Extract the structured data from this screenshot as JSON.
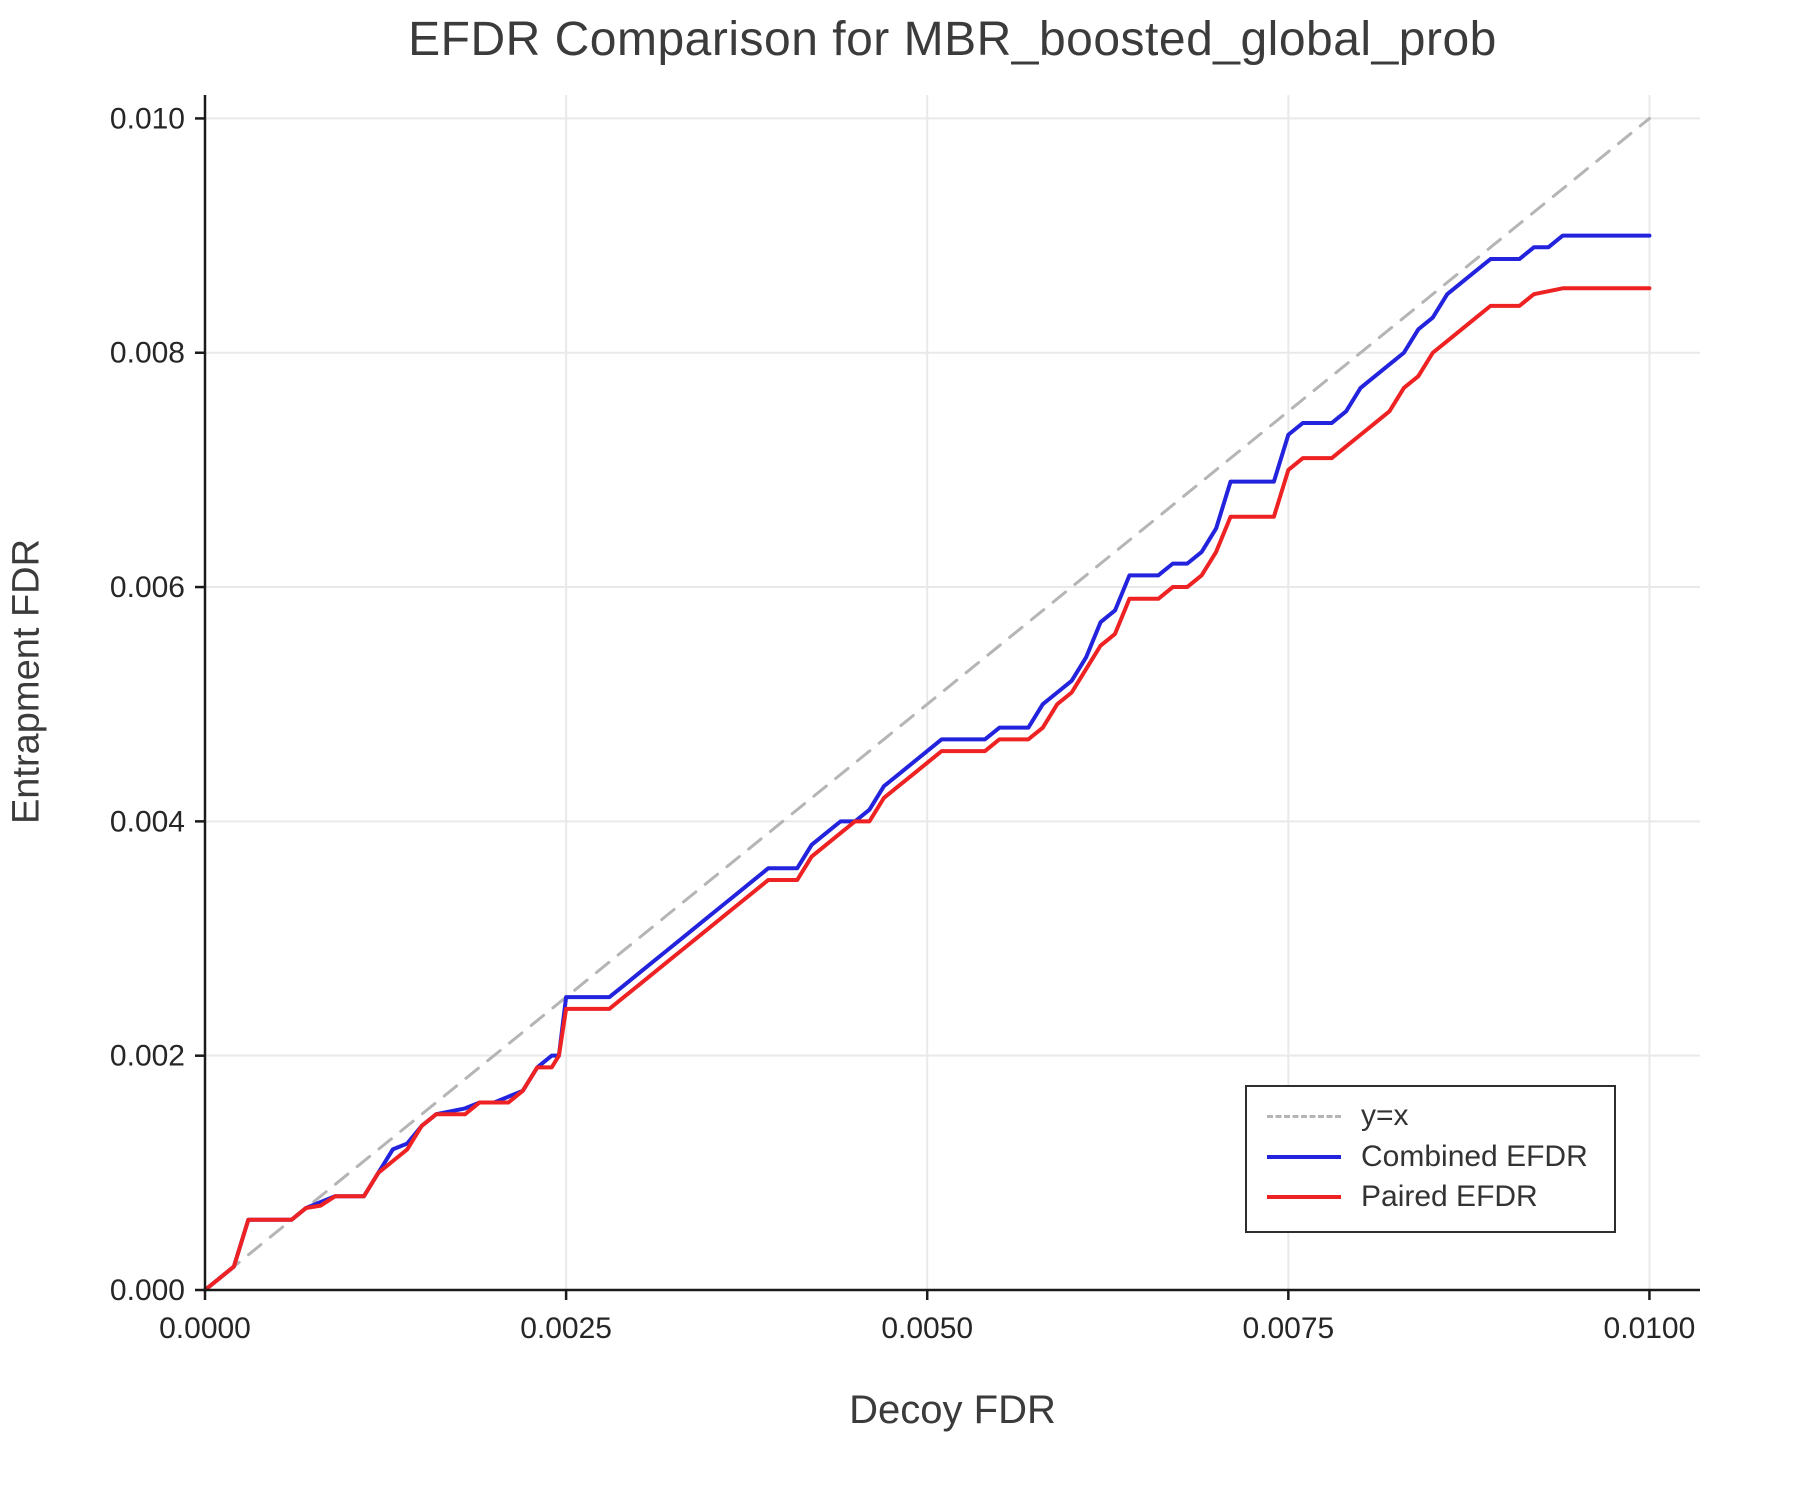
{
  "title": "EFDR Comparison for MBR_boosted_global_prob",
  "chart_data": {
    "type": "line",
    "title": "EFDR Comparison for MBR_boosted_global_prob",
    "xlabel": "Decoy FDR",
    "ylabel": "Entrapment FDR",
    "xlim": [
      0,
      0.01035
    ],
    "ylim": [
      0,
      0.0102
    ],
    "grid": true,
    "legend_position": "lower right",
    "x_ticks": [
      0,
      0.0025,
      0.005,
      0.0075,
      0.01
    ],
    "x_tick_labels": [
      "0.0000",
      "0.0025",
      "0.0050",
      "0.0075",
      "0.0100"
    ],
    "y_ticks": [
      0,
      0.002,
      0.004,
      0.006,
      0.008,
      0.01
    ],
    "y_tick_labels": [
      "0.000",
      "0.002",
      "0.004",
      "0.006",
      "0.008",
      "0.010"
    ],
    "series": [
      {
        "name": "y=x",
        "style": "dashed",
        "color": "#b5b5b5",
        "width": 3,
        "points": [
          [
            0,
            0
          ],
          [
            0.01,
            0.01
          ]
        ]
      },
      {
        "name": "Combined EFDR",
        "style": "solid",
        "color": "#2323dd",
        "width": 4,
        "points": [
          [
            0.0,
            0.0
          ],
          [
            0.0001,
            0.0001
          ],
          [
            0.0002,
            0.0002
          ],
          [
            0.0003,
            0.0006
          ],
          [
            0.0006,
            0.0006
          ],
          [
            0.0007,
            0.0007
          ],
          [
            0.0008,
            0.00075
          ],
          [
            0.0009,
            0.0008
          ],
          [
            0.0011,
            0.0008
          ],
          [
            0.0012,
            0.001
          ],
          [
            0.0013,
            0.0012
          ],
          [
            0.0014,
            0.00125
          ],
          [
            0.0015,
            0.0014
          ],
          [
            0.0016,
            0.0015
          ],
          [
            0.0018,
            0.00155
          ],
          [
            0.0019,
            0.0016
          ],
          [
            0.002,
            0.0016
          ],
          [
            0.0021,
            0.00165
          ],
          [
            0.0022,
            0.0017
          ],
          [
            0.0023,
            0.0019
          ],
          [
            0.0024,
            0.002
          ],
          [
            0.00245,
            0.002
          ],
          [
            0.0025,
            0.0025
          ],
          [
            0.0028,
            0.0025
          ],
          [
            0.0029,
            0.0026
          ],
          [
            0.003,
            0.0027
          ],
          [
            0.0031,
            0.0028
          ],
          [
            0.0032,
            0.0029
          ],
          [
            0.0033,
            0.003
          ],
          [
            0.0034,
            0.0031
          ],
          [
            0.0035,
            0.0032
          ],
          [
            0.0036,
            0.0033
          ],
          [
            0.0037,
            0.0034
          ],
          [
            0.0038,
            0.0035
          ],
          [
            0.0039,
            0.0036
          ],
          [
            0.0041,
            0.0036
          ],
          [
            0.0042,
            0.0038
          ],
          [
            0.0043,
            0.0039
          ],
          [
            0.0044,
            0.004
          ],
          [
            0.0045,
            0.004
          ],
          [
            0.0046,
            0.0041
          ],
          [
            0.0047,
            0.0043
          ],
          [
            0.0048,
            0.0044
          ],
          [
            0.0049,
            0.0045
          ],
          [
            0.005,
            0.0046
          ],
          [
            0.0051,
            0.0047
          ],
          [
            0.0054,
            0.0047
          ],
          [
            0.0055,
            0.0048
          ],
          [
            0.0057,
            0.0048
          ],
          [
            0.0058,
            0.005
          ],
          [
            0.0059,
            0.0051
          ],
          [
            0.006,
            0.0052
          ],
          [
            0.0061,
            0.0054
          ],
          [
            0.0062,
            0.0057
          ],
          [
            0.0063,
            0.0058
          ],
          [
            0.0064,
            0.0061
          ],
          [
            0.0066,
            0.0061
          ],
          [
            0.0067,
            0.0062
          ],
          [
            0.0068,
            0.0062
          ],
          [
            0.0069,
            0.0063
          ],
          [
            0.007,
            0.0065
          ],
          [
            0.0071,
            0.0069
          ],
          [
            0.0074,
            0.0069
          ],
          [
            0.0075,
            0.0073
          ],
          [
            0.0076,
            0.0074
          ],
          [
            0.0078,
            0.0074
          ],
          [
            0.0079,
            0.0075
          ],
          [
            0.008,
            0.0077
          ],
          [
            0.0081,
            0.0078
          ],
          [
            0.0082,
            0.0079
          ],
          [
            0.0083,
            0.008
          ],
          [
            0.0084,
            0.0082
          ],
          [
            0.0085,
            0.0083
          ],
          [
            0.0086,
            0.0085
          ],
          [
            0.0087,
            0.0086
          ],
          [
            0.0088,
            0.0087
          ],
          [
            0.0089,
            0.0088
          ],
          [
            0.0091,
            0.0088
          ],
          [
            0.0092,
            0.0089
          ],
          [
            0.0093,
            0.0089
          ],
          [
            0.0094,
            0.009
          ],
          [
            0.01,
            0.009
          ]
        ]
      },
      {
        "name": "Paired EFDR",
        "style": "solid",
        "color": "#ee2222",
        "width": 4,
        "points": [
          [
            0.0,
            0.0
          ],
          [
            0.0001,
            0.0001
          ],
          [
            0.0002,
            0.0002
          ],
          [
            0.0003,
            0.0006
          ],
          [
            0.0006,
            0.0006
          ],
          [
            0.0007,
            0.0007
          ],
          [
            0.0008,
            0.00072
          ],
          [
            0.0009,
            0.0008
          ],
          [
            0.0011,
            0.0008
          ],
          [
            0.0012,
            0.001
          ],
          [
            0.0013,
            0.0011
          ],
          [
            0.0014,
            0.0012
          ],
          [
            0.0015,
            0.0014
          ],
          [
            0.0016,
            0.0015
          ],
          [
            0.0018,
            0.0015
          ],
          [
            0.0019,
            0.0016
          ],
          [
            0.002,
            0.0016
          ],
          [
            0.0021,
            0.0016
          ],
          [
            0.0022,
            0.0017
          ],
          [
            0.0023,
            0.0019
          ],
          [
            0.0024,
            0.0019
          ],
          [
            0.00245,
            0.002
          ],
          [
            0.0025,
            0.0024
          ],
          [
            0.0028,
            0.0024
          ],
          [
            0.0029,
            0.0025
          ],
          [
            0.003,
            0.0026
          ],
          [
            0.0031,
            0.0027
          ],
          [
            0.0032,
            0.0028
          ],
          [
            0.0033,
            0.0029
          ],
          [
            0.0034,
            0.003
          ],
          [
            0.0035,
            0.0031
          ],
          [
            0.0036,
            0.0032
          ],
          [
            0.0037,
            0.0033
          ],
          [
            0.0038,
            0.0034
          ],
          [
            0.0039,
            0.0035
          ],
          [
            0.0041,
            0.0035
          ],
          [
            0.0042,
            0.0037
          ],
          [
            0.0043,
            0.0038
          ],
          [
            0.0044,
            0.0039
          ],
          [
            0.0045,
            0.004
          ],
          [
            0.0046,
            0.004
          ],
          [
            0.0047,
            0.0042
          ],
          [
            0.0048,
            0.0043
          ],
          [
            0.0049,
            0.0044
          ],
          [
            0.005,
            0.0045
          ],
          [
            0.0051,
            0.0046
          ],
          [
            0.0054,
            0.0046
          ],
          [
            0.0055,
            0.0047
          ],
          [
            0.0057,
            0.0047
          ],
          [
            0.0058,
            0.0048
          ],
          [
            0.0059,
            0.005
          ],
          [
            0.006,
            0.0051
          ],
          [
            0.0061,
            0.0053
          ],
          [
            0.0062,
            0.0055
          ],
          [
            0.0063,
            0.0056
          ],
          [
            0.0064,
            0.0059
          ],
          [
            0.0066,
            0.0059
          ],
          [
            0.0067,
            0.006
          ],
          [
            0.0068,
            0.006
          ],
          [
            0.0069,
            0.0061
          ],
          [
            0.007,
            0.0063
          ],
          [
            0.0071,
            0.0066
          ],
          [
            0.0074,
            0.0066
          ],
          [
            0.0075,
            0.007
          ],
          [
            0.0076,
            0.0071
          ],
          [
            0.0078,
            0.0071
          ],
          [
            0.0079,
            0.0072
          ],
          [
            0.008,
            0.0073
          ],
          [
            0.0081,
            0.0074
          ],
          [
            0.0082,
            0.0075
          ],
          [
            0.0083,
            0.0077
          ],
          [
            0.0084,
            0.0078
          ],
          [
            0.0085,
            0.008
          ],
          [
            0.0086,
            0.0081
          ],
          [
            0.0087,
            0.0082
          ],
          [
            0.0088,
            0.0083
          ],
          [
            0.0089,
            0.0084
          ],
          [
            0.0091,
            0.0084
          ],
          [
            0.0092,
            0.0085
          ],
          [
            0.0094,
            0.00855
          ],
          [
            0.01,
            0.00855
          ]
        ]
      }
    ]
  },
  "colors": {
    "grid": "#e9e9e9",
    "spine": "#1a1a1a",
    "tick_text": "#262626"
  }
}
